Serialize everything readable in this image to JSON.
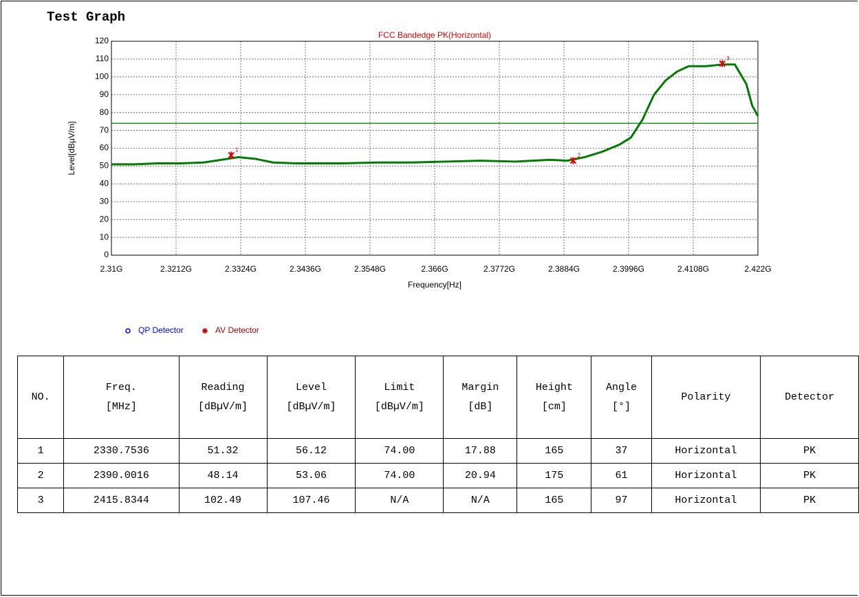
{
  "title": "Test Graph",
  "chart_data": {
    "type": "line",
    "title": "FCC Bandedge PK(Horizontal)",
    "x_label": "Frequency[Hz]",
    "y_label": "Level[dBµV/m]",
    "x": [
      2310000000,
      2314000000,
      2318000000,
      2322000000,
      2326000000,
      2329000000,
      2332000000,
      2335000000,
      2338000000,
      2342000000,
      2350000000,
      2356000000,
      2362000000,
      2368000000,
      2374000000,
      2380000000,
      2386000000,
      2389000000,
      2392000000,
      2395000000,
      2398000000,
      2400000000,
      2402000000,
      2404000000,
      2406000000,
      2408000000,
      2410000000,
      2413000000,
      2416000000,
      2418000000,
      2420000000,
      2421000000,
      2422000000
    ],
    "series": [
      {
        "color": "#007a00",
        "values": [
          51,
          51,
          51.5,
          51.5,
          52,
          53.5,
          55,
          54,
          52,
          51.5,
          51.5,
          52,
          52,
          52.5,
          53,
          52.5,
          53.5,
          53,
          55,
          58,
          62,
          66,
          76,
          90,
          98,
          103,
          106,
          106,
          107,
          107,
          96,
          84,
          78
        ]
      }
    ],
    "limit": 74,
    "limit_color": "#007a00",
    "markers": {
      "x": [
        2330753600,
        2390001600,
        2415834400
      ],
      "y": [
        56.12,
        53.06,
        107.46
      ],
      "labels": [
        "1",
        "2",
        "3"
      ],
      "color": "#e00000"
    },
    "legend": [
      {
        "name": "QP Detector",
        "color": "#0000ff"
      },
      {
        "name": "AV Detector",
        "color": "#b00000"
      }
    ],
    "xlim": [
      2310000000,
      2422000000
    ],
    "xticks": [
      {
        "value": 2310000000,
        "label": "2.31G"
      },
      {
        "value": 2321200000,
        "label": "2.3212G"
      },
      {
        "value": 2332400000,
        "label": "2.3324G"
      },
      {
        "value": 2343600000,
        "label": "2.3436G"
      },
      {
        "value": 2354800000,
        "label": "2.3548G"
      },
      {
        "value": 2366000000,
        "label": "2.366G"
      },
      {
        "value": 2377200000,
        "label": "2.3772G"
      },
      {
        "value": 2388400000,
        "label": "2.3884G"
      },
      {
        "value": 2399600000,
        "label": "2.3996G"
      },
      {
        "value": 2410800000,
        "label": "2.4108G"
      },
      {
        "value": 2422000000,
        "label": "2.422G"
      }
    ],
    "ylim": [
      0,
      120
    ],
    "yticks": [
      0,
      10,
      20,
      30,
      40,
      50,
      60,
      70,
      80,
      90,
      100,
      110,
      120
    ],
    "grid": true
  },
  "table": {
    "header": [
      [
        "NO."
      ],
      [
        "Freq.",
        "[MHz]"
      ],
      [
        "Reading",
        "[dBµV/m]"
      ],
      [
        "Level",
        "[dBµV/m]"
      ],
      [
        "Limit",
        "[dBµV/m]"
      ],
      [
        "Margin",
        "[dB]"
      ],
      [
        "Height",
        "[cm]"
      ],
      [
        "Angle",
        "[°]"
      ],
      [
        "Polarity"
      ],
      [
        "Detector"
      ]
    ],
    "rows": [
      [
        "1",
        "2330.7536",
        "51.32",
        "56.12",
        "74.00",
        "17.88",
        "165",
        "37",
        "Horizontal",
        "PK"
      ],
      [
        "2",
        "2390.0016",
        "48.14",
        "53.06",
        "74.00",
        "20.94",
        "175",
        "61",
        "Horizontal",
        "PK"
      ],
      [
        "3",
        "2415.8344",
        "102.49",
        "107.46",
        "N/A",
        "N/A",
        "165",
        "97",
        "Horizontal",
        "PK"
      ]
    ]
  }
}
